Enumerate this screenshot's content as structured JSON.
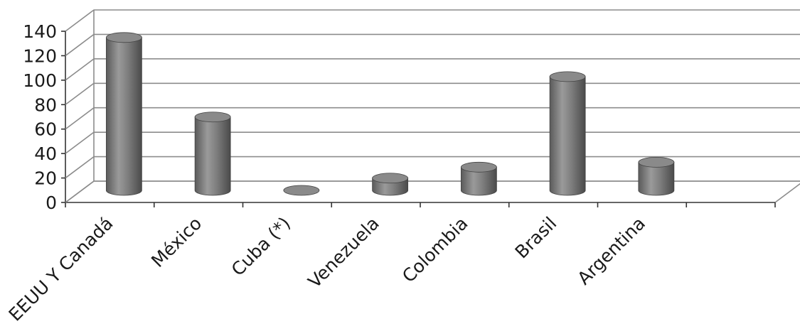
{
  "chart_data": {
    "type": "bar",
    "style": "3d-cylinder",
    "categories": [
      "EEUU Y Canadá",
      "México",
      "Cuba (*)",
      "Venezuela",
      "Colombia",
      "Brasil",
      "Argentina"
    ],
    "values": [
      125,
      60,
      0,
      10,
      19,
      93,
      23
    ],
    "ylim": [
      0,
      140
    ],
    "yticks": [
      0,
      20,
      40,
      60,
      80,
      100,
      120,
      140
    ],
    "grid": true,
    "legend": "none",
    "colors": {
      "bar": "#7a7a7a",
      "grid": "#8c8c8c",
      "text": "#1a1a1a"
    }
  }
}
